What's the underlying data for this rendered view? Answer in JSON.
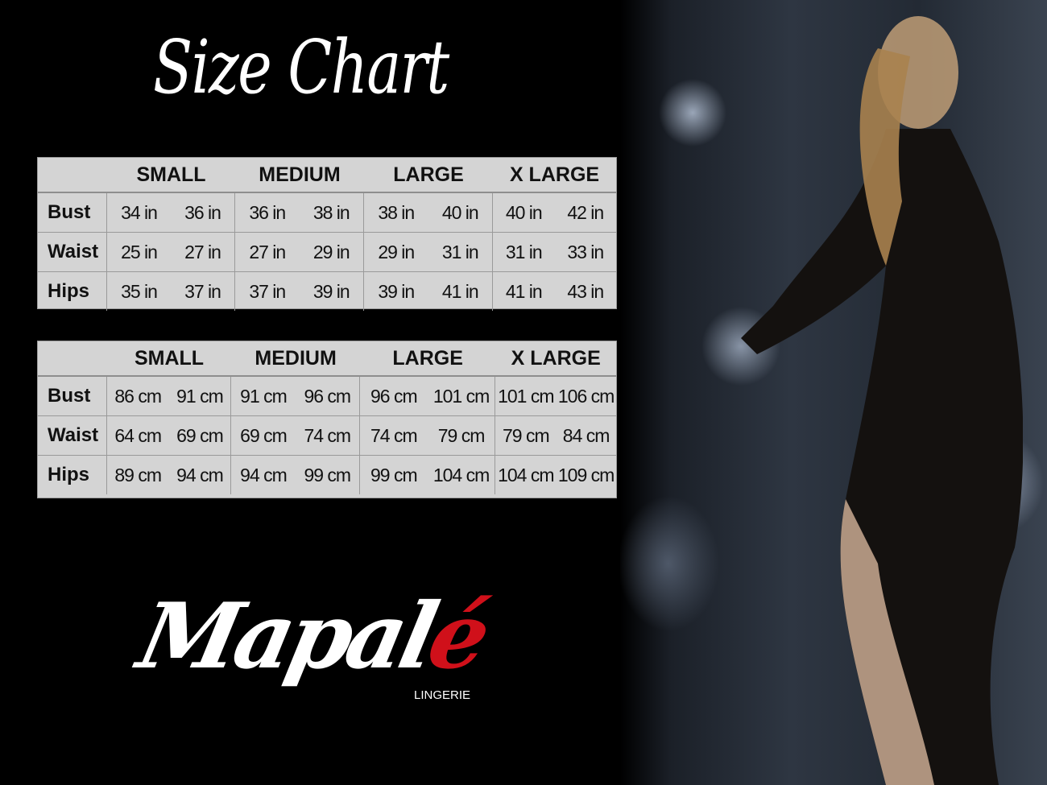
{
  "title": "Size Chart",
  "sizes": [
    "SMALL",
    "MEDIUM",
    "LARGE",
    "X LARGE"
  ],
  "inches_table": {
    "rows": [
      {
        "label": "Bust",
        "values": [
          "34 in",
          "36 in",
          "36 in",
          "38 in",
          "38 in",
          "40 in",
          "40 in",
          "42 in"
        ]
      },
      {
        "label": "Waist",
        "values": [
          "25 in",
          "27 in",
          "27 in",
          "29 in",
          "29 in",
          "31 in",
          "31 in",
          "33 in"
        ]
      },
      {
        "label": "Hips",
        "values": [
          "35 in",
          "37 in",
          "37 in",
          "39 in",
          "39 in",
          "41 in",
          "41 in",
          "43 in"
        ]
      }
    ]
  },
  "cm_table": {
    "rows": [
      {
        "label": "Bust",
        "values": [
          "86 cm",
          "91 cm",
          "91 cm",
          "96 cm",
          "96 cm",
          "101 cm",
          "101 cm",
          "106 cm"
        ]
      },
      {
        "label": "Waist",
        "values": [
          "64 cm",
          "69 cm",
          "69 cm",
          "74 cm",
          "74 cm",
          "79 cm",
          "79 cm",
          "84 cm"
        ]
      },
      {
        "label": "Hips",
        "values": [
          "89 cm",
          "94 cm",
          "94 cm",
          "99 cm",
          "99 cm",
          "104 cm",
          "104 cm",
          "109 cm"
        ]
      }
    ]
  },
  "brand": {
    "name_main": "Mapal",
    "name_accent": "é",
    "subtitle": "LINGERIE",
    "accent_color": "#d0101a"
  }
}
